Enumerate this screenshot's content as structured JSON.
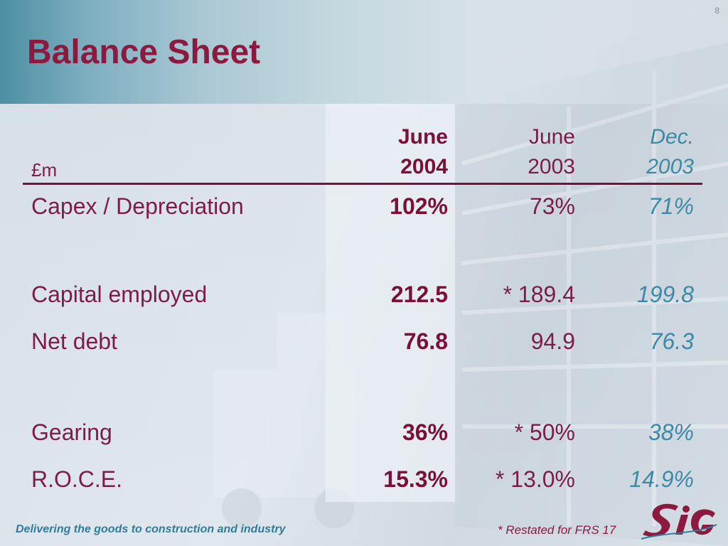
{
  "page_number": "8",
  "title": "Balance Sheet",
  "table": {
    "unit_label": "£m",
    "columns": [
      {
        "line1": "June",
        "line2": "2004"
      },
      {
        "line1": "June",
        "line2": "2003"
      },
      {
        "line1": "Dec.",
        "line2": "2003"
      }
    ],
    "rows": [
      {
        "label": "Capex / Depreciation",
        "v1": "102%",
        "v2": "73%",
        "v3": "71%"
      },
      {
        "label": "Capital employed",
        "v1": "212.5",
        "v2": "* 189.4",
        "v3": "199.8"
      },
      {
        "label": "Net debt",
        "v1": "76.8",
        "v2": "94.9",
        "v3": "76.3"
      },
      {
        "label": "Gearing",
        "v1": "36%",
        "v2": "* 50%",
        "v3": "38%"
      },
      {
        "label": "R.O.C.E.",
        "v1": "15.3%",
        "v2": "* 13.0%",
        "v3": "14.9%"
      }
    ]
  },
  "footer": {
    "tagline": "Delivering the goods to construction and industry",
    "footnote": "* Restated for FRS 17",
    "logo_icon": "sig-logo-icon"
  },
  "colors": {
    "title": "#8c1a3f",
    "current_column": "#7a1038",
    "prior_column": "#7a1e45",
    "dec_column": "#3d89a6",
    "tagline": "#2f7d9c"
  }
}
